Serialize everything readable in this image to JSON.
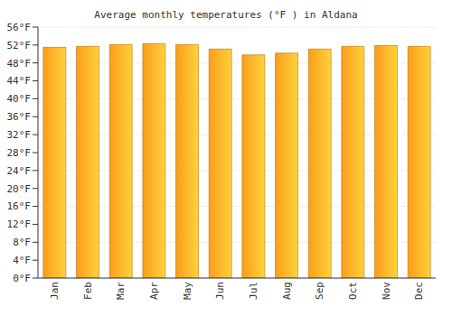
{
  "chart_data": {
    "type": "bar",
    "title": "Average monthly temperatures (°F ) in Aldana",
    "categories": [
      "Jan",
      "Feb",
      "Mar",
      "Apr",
      "May",
      "Jun",
      "Jul",
      "Aug",
      "Sep",
      "Oct",
      "Nov",
      "Dec"
    ],
    "values": [
      51.5,
      51.7,
      52.1,
      52.3,
      52.1,
      51.1,
      49.8,
      50.2,
      51.1,
      51.7,
      51.9,
      51.7
    ],
    "color": "#fa9d1c",
    "ylim": [
      0,
      56
    ],
    "yticks": [
      {
        "value": 0,
        "label": "0°F"
      },
      {
        "value": 4,
        "label": "4°F"
      },
      {
        "value": 8,
        "label": "8°F"
      },
      {
        "value": 12,
        "label": "12°F"
      },
      {
        "value": 16,
        "label": "16°F"
      },
      {
        "value": 20,
        "label": "20°F"
      },
      {
        "value": 24,
        "label": "24°F"
      },
      {
        "value": 28,
        "label": "28°F"
      },
      {
        "value": 32,
        "label": "32°F"
      },
      {
        "value": 36,
        "label": "36°F"
      },
      {
        "value": 40,
        "label": "40°F"
      },
      {
        "value": 44,
        "label": "44°F"
      },
      {
        "value": 48,
        "label": "48°F"
      },
      {
        "value": 52,
        "label": "52°F"
      },
      {
        "value": 56,
        "label": "56°F"
      }
    ],
    "grid": true
  }
}
